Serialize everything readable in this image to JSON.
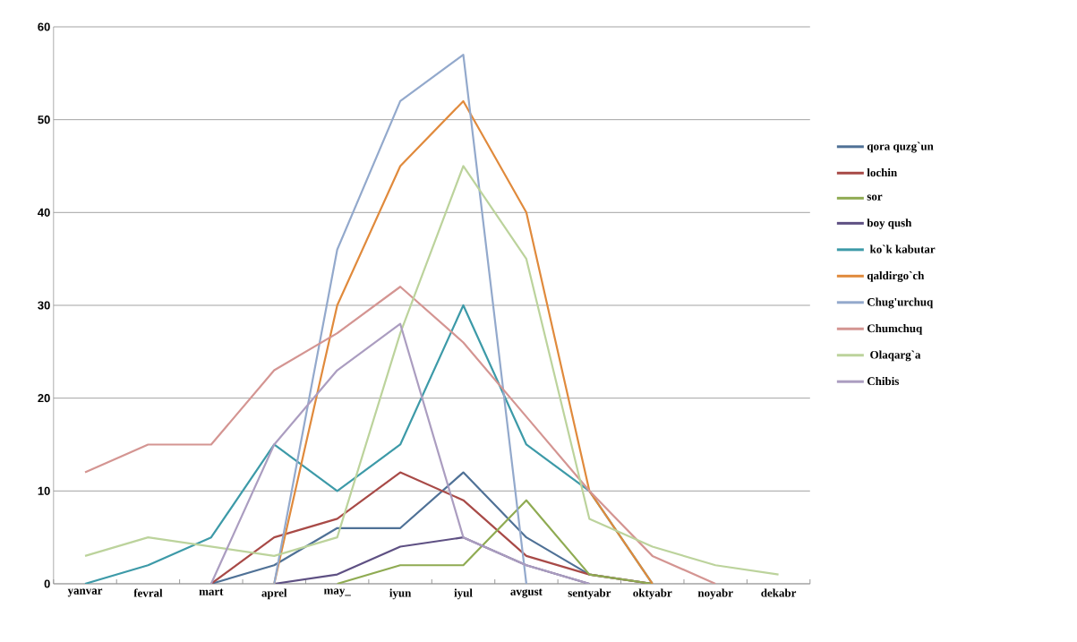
{
  "chart_data": {
    "type": "line",
    "categories": [
      "yanvar",
      "fevral",
      "mart",
      "aprel",
      "may_",
      "iyun",
      "iyul",
      "avgust",
      "sentyabr",
      "oktyabr",
      "noyabr",
      "dekabr"
    ],
    "ylim": [
      0,
      60
    ],
    "yticks": [
      0,
      10,
      20,
      30,
      40,
      50,
      60
    ],
    "grid": "y",
    "legend": "right",
    "series": [
      {
        "name": "qora quzg`un",
        "color": "#4f7196",
        "values": [
          null,
          null,
          0,
          2,
          6,
          6,
          12,
          5,
          1,
          0,
          null,
          null
        ]
      },
      {
        "name": "lochin",
        "color": "#a84a47",
        "values": [
          null,
          null,
          0,
          5,
          7,
          12,
          9,
          3,
          1,
          0,
          null,
          null
        ]
      },
      {
        "name": "sor",
        "color": "#8fab52",
        "values": [
          null,
          null,
          null,
          null,
          0,
          2,
          2,
          9,
          1,
          0,
          null,
          null
        ]
      },
      {
        "name": "boy qush",
        "color": "#5e5083",
        "values": [
          null,
          null,
          null,
          0,
          1,
          4,
          5,
          2,
          0,
          null,
          null,
          null
        ]
      },
      {
        "name": " ko`k kabutar",
        "color": "#3d9aa8",
        "values": [
          0,
          2,
          5,
          15,
          10,
          15,
          30,
          15,
          10,
          0,
          null,
          null
        ]
      },
      {
        "name": "qaldirgo`ch",
        "color": "#e08a3c",
        "values": [
          null,
          null,
          null,
          0,
          30,
          45,
          52,
          40,
          10,
          0,
          null,
          null
        ]
      },
      {
        "name": "Chug'urchuq",
        "color": "#93a9cc",
        "values": [
          null,
          null,
          null,
          0,
          36,
          52,
          57,
          0,
          null,
          null,
          null,
          null
        ]
      },
      {
        "name": "Chumchuq",
        "color": "#d49592",
        "values": [
          12,
          15,
          15,
          23,
          27,
          32,
          26,
          18,
          10,
          3,
          0,
          null
        ]
      },
      {
        "name": " Olaqarg`a",
        "color": "#bcd39c",
        "values": [
          3,
          5,
          4,
          3,
          5,
          27,
          45,
          35,
          7,
          4,
          2,
          1
        ]
      },
      {
        "name": "Chibis",
        "color": "#ab9dc0",
        "values": [
          null,
          null,
          0,
          15,
          23,
          28,
          5,
          2,
          0,
          null,
          null,
          null
        ]
      }
    ]
  }
}
